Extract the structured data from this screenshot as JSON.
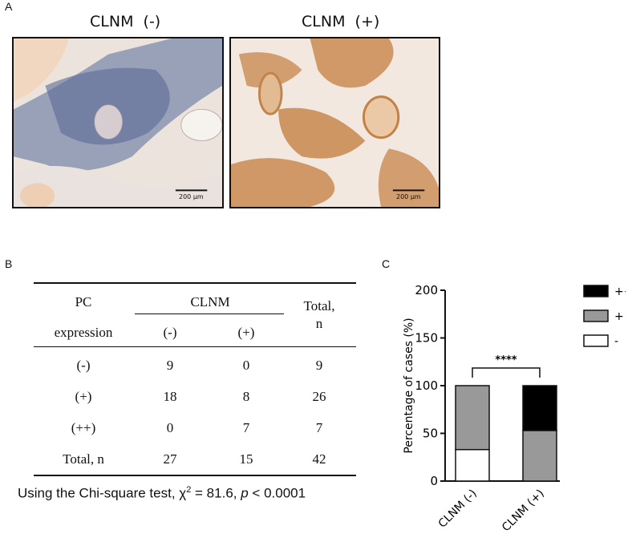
{
  "panels": {
    "a": {
      "letter": "A",
      "titles": [
        "CLNM  (-)",
        "CLNM  (+)"
      ],
      "scalebars": [
        "200 µm",
        "200 µm"
      ]
    },
    "b": {
      "letter": "B",
      "header": {
        "pc": "PC",
        "expression": "expression",
        "clnm": "CLNM",
        "neg": "(-)",
        "pos": "(+)",
        "total1": "Total,",
        "total2": "n"
      },
      "rows": [
        {
          "label": "(-)",
          "neg": "9",
          "pos": "0",
          "total": "9"
        },
        {
          "label": "(+)",
          "neg": "18",
          "pos": "8",
          "total": "26"
        },
        {
          "label": "(++)",
          "neg": "0",
          "pos": "7",
          "total": "7"
        },
        {
          "label": "Total, n",
          "neg": "27",
          "pos": "15",
          "total": "42"
        }
      ],
      "stat": {
        "prefix": "Using the Chi-square test, χ",
        "sup": "2",
        "mid": " = 81.6, ",
        "p": "p",
        "suffix": " < 0.0001"
      }
    },
    "c": {
      "letter": "C"
    }
  },
  "chart_data": {
    "type": "bar",
    "stacked": true,
    "categories": [
      "CLNM (-)",
      "CLNM (+)"
    ],
    "series": [
      {
        "name": "-",
        "values": [
          33,
          0
        ],
        "color": "#ffffff"
      },
      {
        "name": "+",
        "values": [
          67,
          53
        ],
        "color": "#999999"
      },
      {
        "name": "++",
        "values": [
          0,
          47
        ],
        "color": "#000000"
      }
    ],
    "ylabel": "Percentage of cases (%)",
    "ylim": [
      0,
      200
    ],
    "yticks": [
      "0",
      "50",
      "100",
      "150",
      "200"
    ],
    "legend": [
      "++",
      "+",
      "-"
    ],
    "legend_position": "top-right",
    "significance": "****"
  }
}
